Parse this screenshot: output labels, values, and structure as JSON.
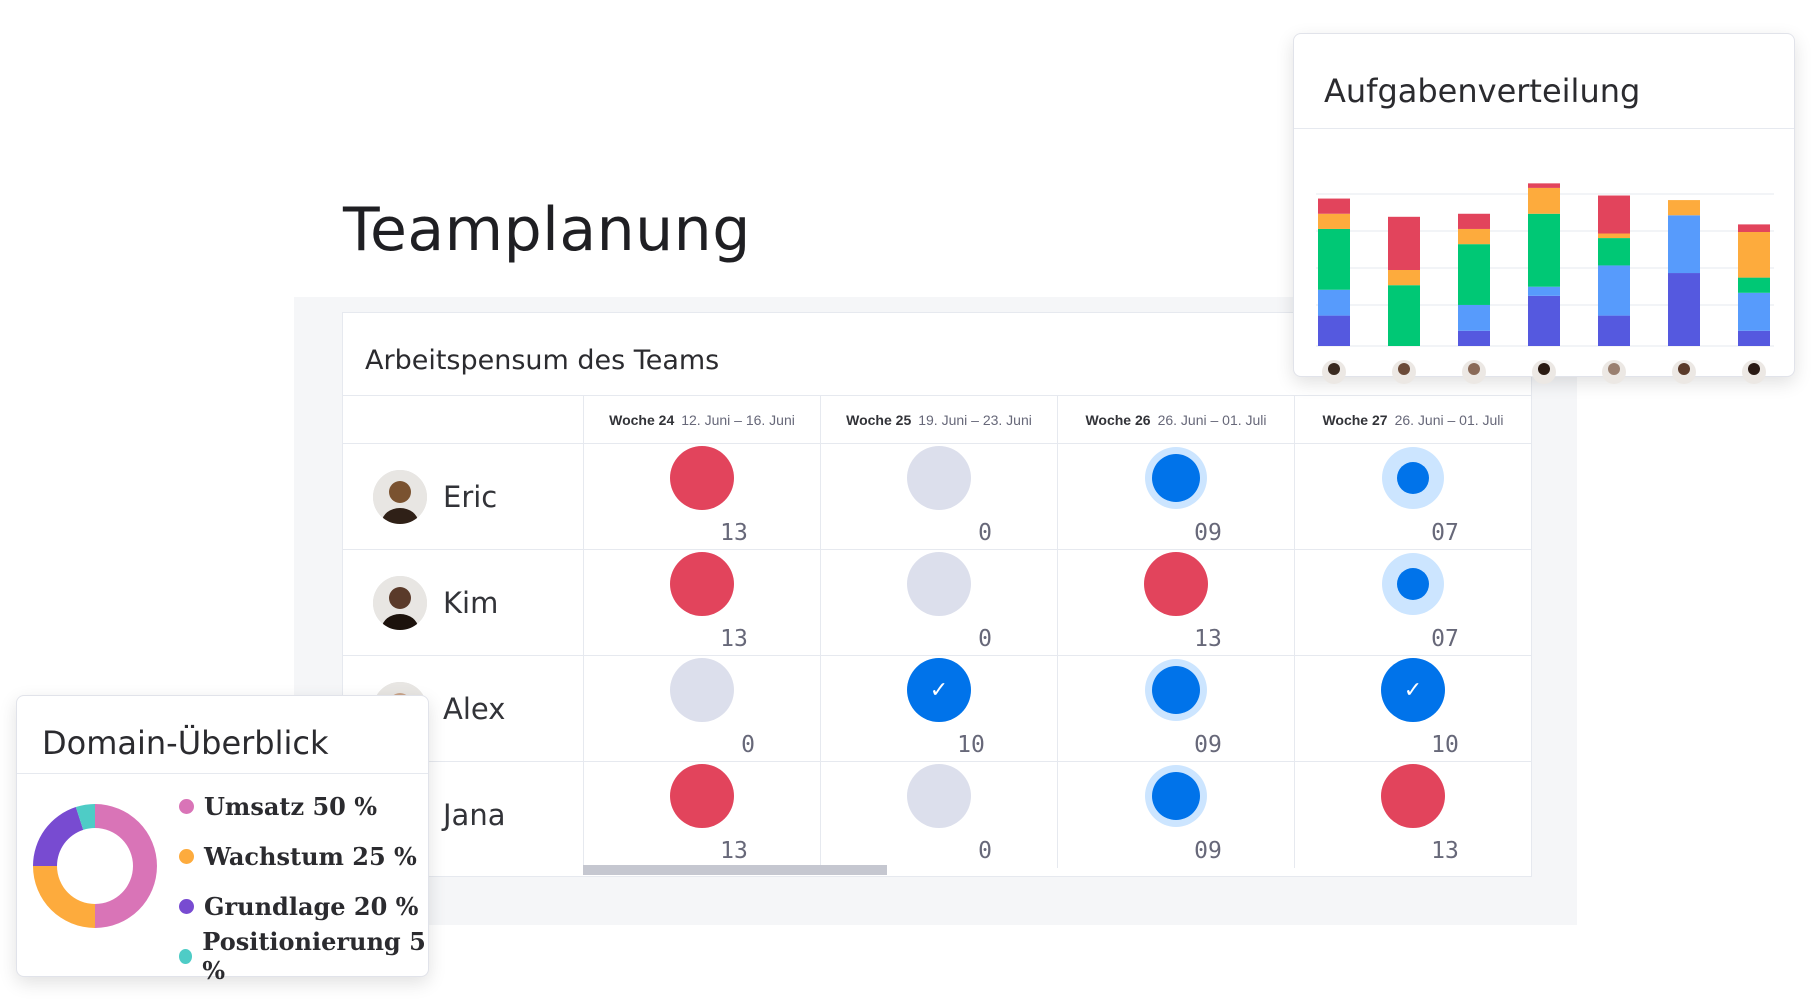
{
  "page": {
    "title": "Teamplanung"
  },
  "board": {
    "title": "Arbeitspensum des Teams",
    "weeks": [
      {
        "week": "Woche 24",
        "dates": "12. Juni – 16. Juni"
      },
      {
        "week": "Woche 25",
        "dates": "19. Juni – 23. Juni"
      },
      {
        "week": "Woche 26",
        "dates": "26. Juni – 01. Juli"
      },
      {
        "week": "Woche 27",
        "dates": "26. Juni – 01. Juli"
      }
    ],
    "people": [
      {
        "name": "Eric",
        "cells": [
          {
            "status": "red",
            "value": "13"
          },
          {
            "status": "gray",
            "value": "0"
          },
          {
            "status": "blue",
            "value": "09"
          },
          {
            "status": "blue-small",
            "value": "07"
          }
        ]
      },
      {
        "name": "Kim",
        "cells": [
          {
            "status": "red",
            "value": "13"
          },
          {
            "status": "gray",
            "value": "0"
          },
          {
            "status": "red",
            "value": "13"
          },
          {
            "status": "blue-small",
            "value": "07"
          }
        ]
      },
      {
        "name": "Alex",
        "cells": [
          {
            "status": "gray",
            "value": "0"
          },
          {
            "status": "check",
            "value": "10"
          },
          {
            "status": "blue",
            "value": "09"
          },
          {
            "status": "check",
            "value": "10"
          }
        ]
      },
      {
        "name": "Jana",
        "cells": [
          {
            "status": "red",
            "value": "13"
          },
          {
            "status": "gray",
            "value": "0"
          },
          {
            "status": "blue",
            "value": "09"
          },
          {
            "status": "red",
            "value": "13"
          }
        ]
      }
    ]
  },
  "task_card": {
    "title": "Aufgabenverteilung"
  },
  "domain_card": {
    "title": "Domain-Überblick",
    "legend": [
      {
        "label": "Umsatz 50 %",
        "color": "#d974b7"
      },
      {
        "label": "Wachstum 25 %",
        "color": "#fdab3d"
      },
      {
        "label": "Grundlage 20 %",
        "color": "#784bd1"
      },
      {
        "label": "Positionierung 5 %",
        "color": "#4eccc6"
      }
    ]
  },
  "colors": {
    "red": "#e2445c",
    "blue": "#0073ea",
    "green": "#00c875",
    "orange": "#fdab3d",
    "light_blue": "#579bfc",
    "purple": "#5559df"
  },
  "chart_data": [
    {
      "type": "bar",
      "stacked": true,
      "title": "Aufgabenverteilung",
      "categories": [
        "",
        "",
        "",
        "",
        "",
        "",
        ""
      ],
      "series": [
        {
          "color": "#5559df",
          "values": [
            20,
            0,
            10,
            33,
            20,
            48,
            10
          ]
        },
        {
          "color": "#579bfc",
          "values": [
            17,
            0,
            17,
            6,
            33,
            38,
            25
          ]
        },
        {
          "color": "#00c875",
          "values": [
            40,
            40,
            40,
            48,
            18,
            0,
            10
          ]
        },
        {
          "color": "#fdab3d",
          "values": [
            10,
            10,
            10,
            17,
            3,
            10,
            30
          ]
        },
        {
          "color": "#e2445c",
          "values": [
            10,
            35,
            10,
            3,
            25,
            0,
            5
          ]
        }
      ]
    },
    {
      "type": "pie",
      "donut": true,
      "categories": [
        "Umsatz",
        "Wachstum",
        "Grundlage",
        "Positionierung"
      ],
      "values": [
        50,
        25,
        20,
        5
      ],
      "colors": [
        "#d974b7",
        "#fdab3d",
        "#784bd1",
        "#4eccc6"
      ]
    }
  ]
}
